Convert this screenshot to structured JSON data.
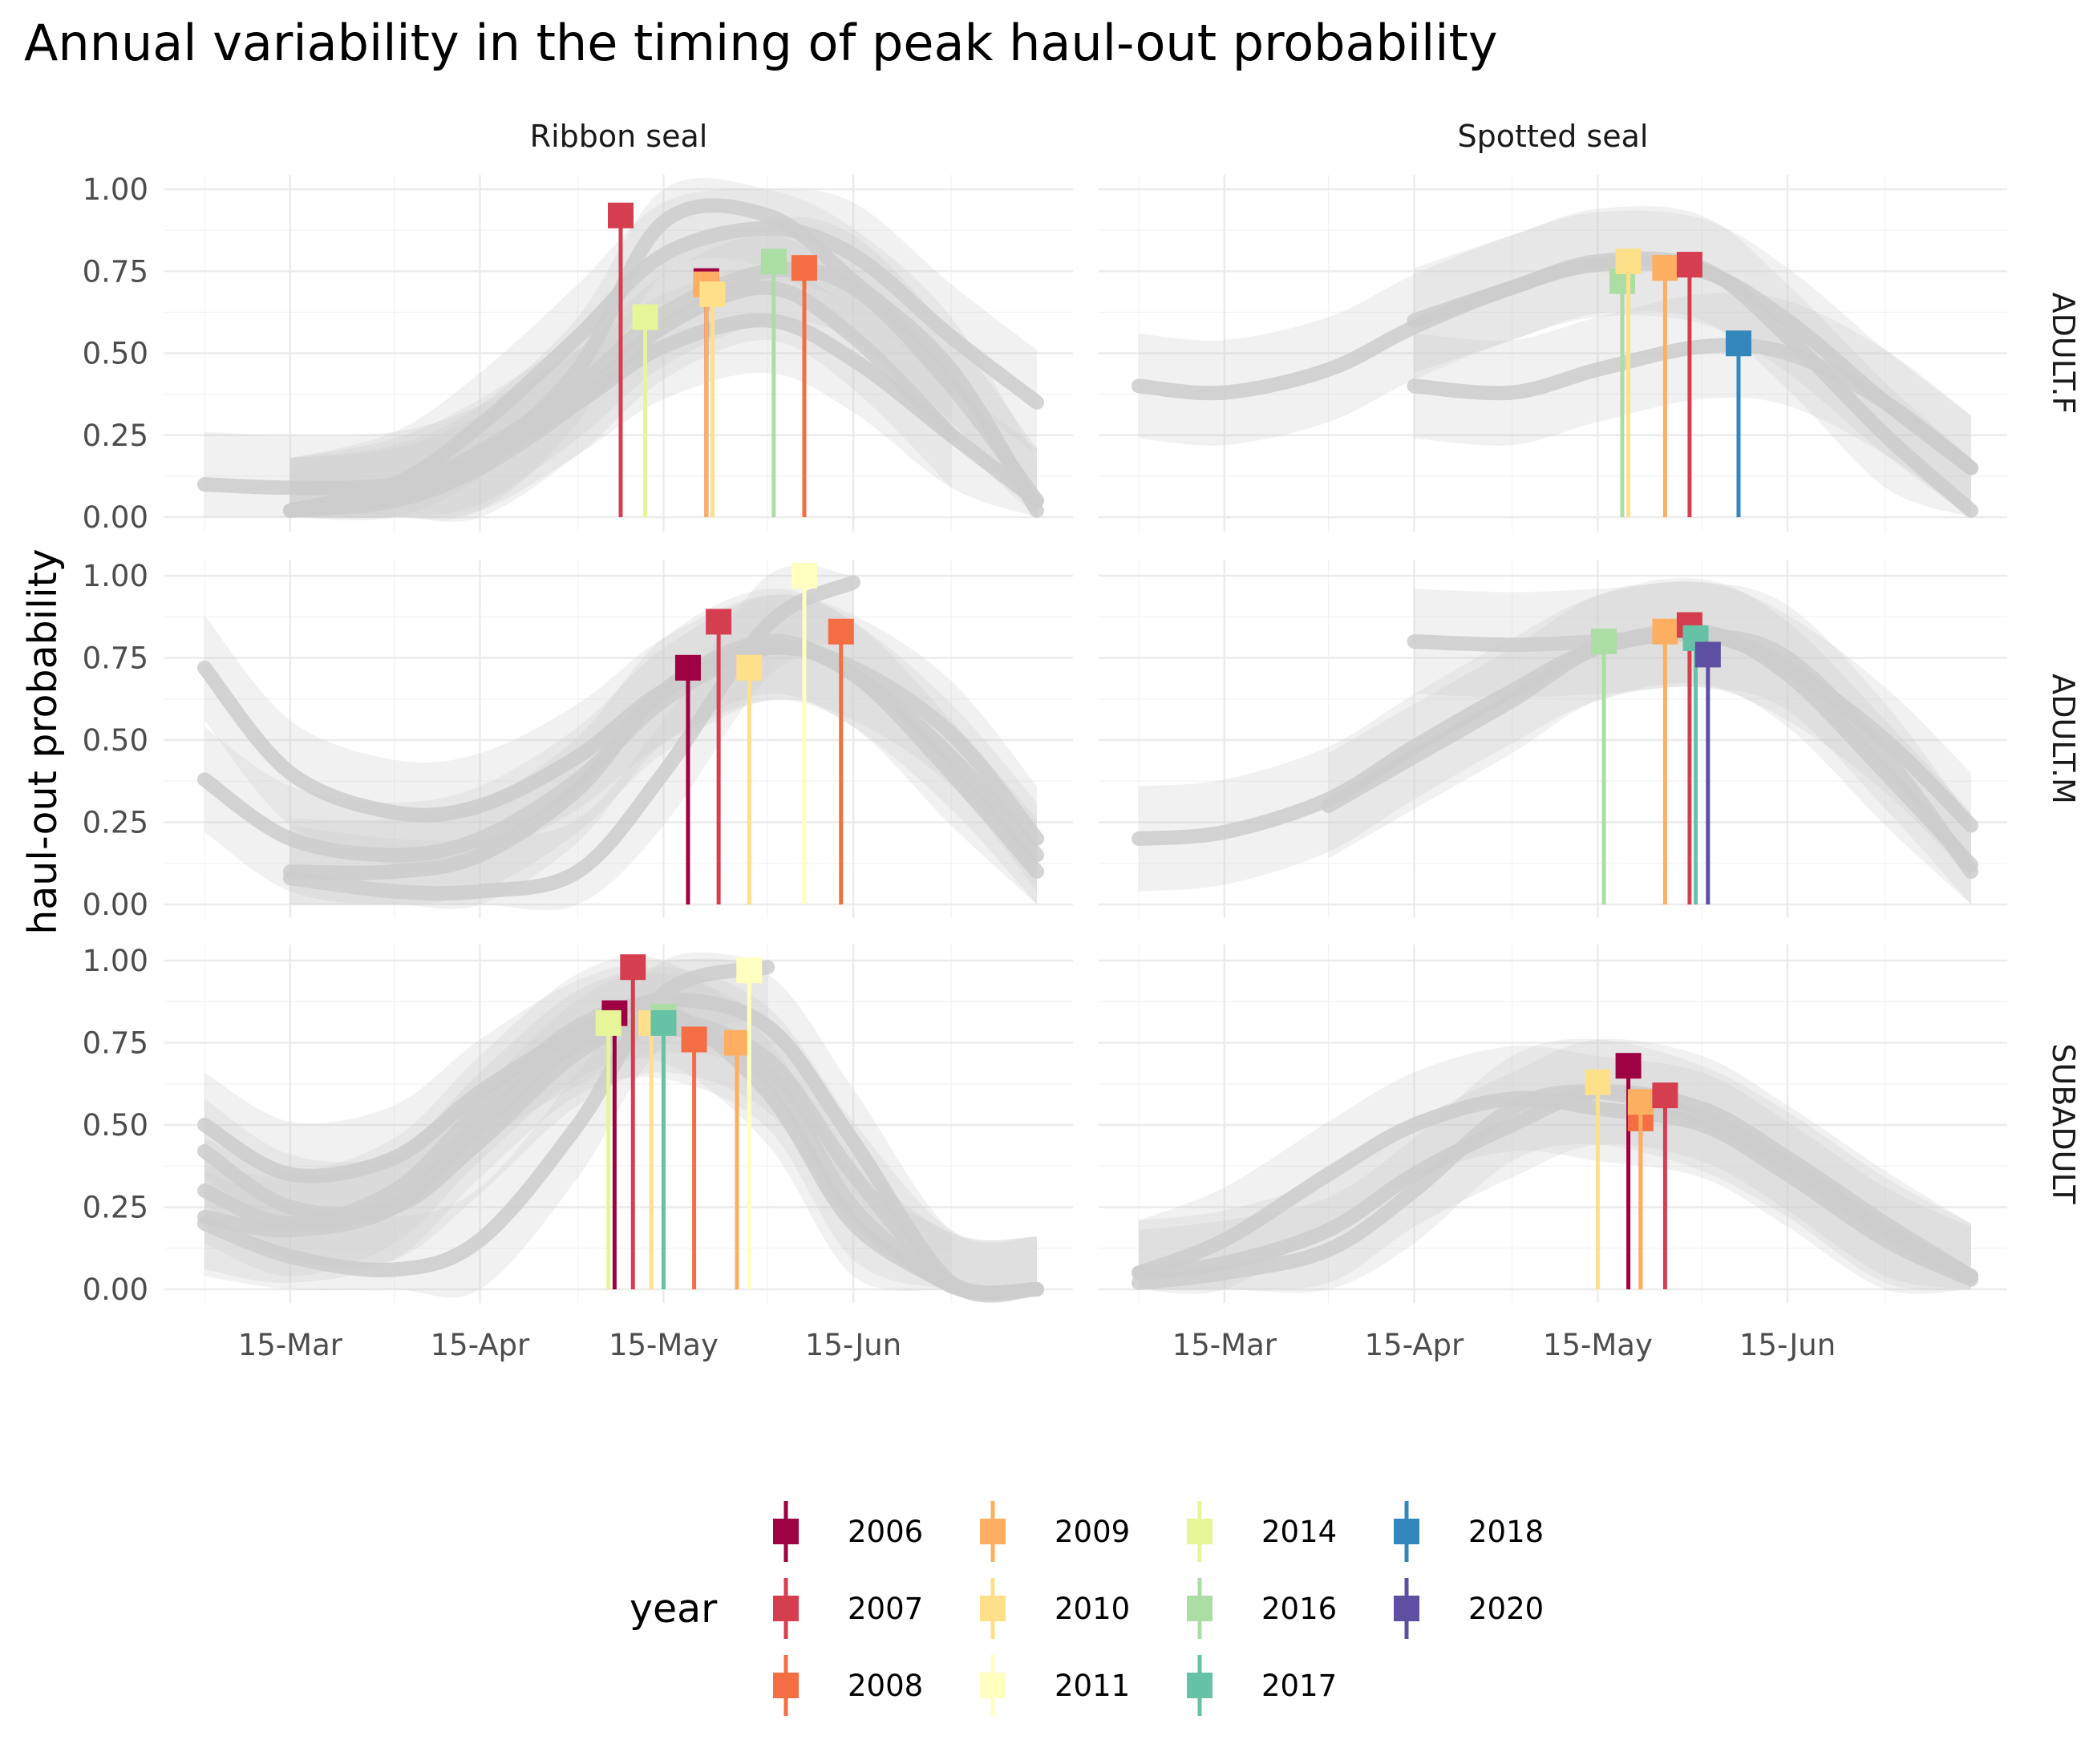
{
  "chart_data": {
    "type": "line",
    "title": "Annual variability in the timing of peak haul-out probability",
    "xlabel": "",
    "ylabel": "haul-out probability",
    "x_ticks": [
      "15-Mar",
      "15-Apr",
      "15-May",
      "15-Jun"
    ],
    "y_ticks": [
      "0.00",
      "0.25",
      "0.50",
      "0.75",
      "1.00"
    ],
    "ylim": [
      0,
      1
    ],
    "xlim": [
      "01-Mar",
      "15-Jul"
    ],
    "legend": {
      "title": "year",
      "position": "bottom",
      "entries": [
        {
          "year": "2006",
          "color": "#9E0142"
        },
        {
          "year": "2007",
          "color": "#D53E4F"
        },
        {
          "year": "2008",
          "color": "#F46D43"
        },
        {
          "year": "2009",
          "color": "#FDAE61"
        },
        {
          "year": "2010",
          "color": "#FEE08B"
        },
        {
          "year": "2011",
          "color": "#FFFFBF"
        },
        {
          "year": "2014",
          "color": "#E6F598"
        },
        {
          "year": "2016",
          "color": "#ABDDA4"
        },
        {
          "year": "2017",
          "color": "#66C2A5"
        },
        {
          "year": "2018",
          "color": "#3288BD"
        },
        {
          "year": "2020",
          "color": "#5E4FA2"
        }
      ]
    },
    "facets": {
      "columns": [
        "Ribbon seal",
        "Spotted seal"
      ],
      "rows": [
        "ADULT.F",
        "ADULT.M",
        "SUBADULT"
      ]
    },
    "curve_color": "#cccccc",
    "peaks": {
      "Ribbon seal": {
        "ADULT.F": [
          {
            "year": "2007",
            "date": "08-May",
            "value": 0.92
          },
          {
            "year": "2014",
            "date": "12-May",
            "value": 0.61
          },
          {
            "year": "2006",
            "date": "22-May",
            "value": 0.72
          },
          {
            "year": "2009",
            "date": "22-May",
            "value": 0.71
          },
          {
            "year": "2010",
            "date": "23-May",
            "value": 0.68
          },
          {
            "year": "2016",
            "date": "02-Jun",
            "value": 0.78
          },
          {
            "year": "2008",
            "date": "07-Jun",
            "value": 0.76
          }
        ],
        "ADULT.M": [
          {
            "year": "2006",
            "date": "19-May",
            "value": 0.72
          },
          {
            "year": "2007",
            "date": "24-May",
            "value": 0.86
          },
          {
            "year": "2010",
            "date": "29-May",
            "value": 0.72
          },
          {
            "year": "2011",
            "date": "07-Jun",
            "value": 1.0
          },
          {
            "year": "2008",
            "date": "13-Jun",
            "value": 0.83
          }
        ],
        "SUBADULT": [
          {
            "year": "2006",
            "date": "07-May",
            "value": 0.84
          },
          {
            "year": "2014",
            "date": "06-May",
            "value": 0.81
          },
          {
            "year": "2007",
            "date": "10-May",
            "value": 0.98
          },
          {
            "year": "2010",
            "date": "13-May",
            "value": 0.81
          },
          {
            "year": "2016",
            "date": "15-May",
            "value": 0.83
          },
          {
            "year": "2017",
            "date": "15-May",
            "value": 0.81
          },
          {
            "year": "2008",
            "date": "20-May",
            "value": 0.76
          },
          {
            "year": "2009",
            "date": "27-May",
            "value": 0.75
          },
          {
            "year": "2011",
            "date": "29-May",
            "value": 0.97
          }
        ]
      },
      "Spotted seal": {
        "ADULT.F": [
          {
            "year": "2016",
            "date": "19-May",
            "value": 0.72
          },
          {
            "year": "2010",
            "date": "20-May",
            "value": 0.78
          },
          {
            "year": "2009",
            "date": "26-May",
            "value": 0.76
          },
          {
            "year": "2007",
            "date": "30-May",
            "value": 0.77
          },
          {
            "year": "2018",
            "date": "07-Jun",
            "value": 0.53
          }
        ],
        "ADULT.M": [
          {
            "year": "2016",
            "date": "16-May",
            "value": 0.8
          },
          {
            "year": "2009",
            "date": "26-May",
            "value": 0.83
          },
          {
            "year": "2007",
            "date": "30-May",
            "value": 0.85
          },
          {
            "year": "2017",
            "date": "31-May",
            "value": 0.81
          },
          {
            "year": "2020",
            "date": "02-Jun",
            "value": 0.76
          }
        ],
        "SUBADULT": [
          {
            "year": "2010",
            "date": "15-May",
            "value": 0.63
          },
          {
            "year": "2006",
            "date": "20-May",
            "value": 0.68
          },
          {
            "year": "2008",
            "date": "22-May",
            "value": 0.52
          },
          {
            "year": "2009",
            "date": "22-May",
            "value": 0.57
          },
          {
            "year": "2007",
            "date": "26-May",
            "value": 0.59
          }
        ]
      }
    },
    "curves": {
      "Ribbon seal": {
        "ADULT.F": [
          {
            "x": [
              "01-Mar",
              "15-Mar",
              "01-Apr",
              "15-Apr",
              "01-May",
              "15-May",
              "01-Jun",
              "15-Jun",
              "01-Jul",
              "15-Jul"
            ],
            "y": [
              0.1,
              0.09,
              0.1,
              0.18,
              0.35,
              0.52,
              0.6,
              0.48,
              0.25,
              0.05
            ]
          },
          {
            "x": [
              "15-Mar",
              "01-Apr",
              "15-Apr",
              "01-May",
              "15-May",
              "01-Jun",
              "15-Jun",
              "01-Jul",
              "15-Jul"
            ],
            "y": [
              0.02,
              0.08,
              0.2,
              0.4,
              0.62,
              0.75,
              0.7,
              0.4,
              0.05
            ]
          },
          {
            "x": [
              "15-Mar",
              "01-Apr",
              "15-Apr",
              "01-May",
              "15-May",
              "01-Jun",
              "15-Jun",
              "01-Jul",
              "15-Jul"
            ],
            "y": [
              0.02,
              0.1,
              0.28,
              0.55,
              0.8,
              0.88,
              0.8,
              0.55,
              0.35
            ]
          },
          {
            "x": [
              "15-Mar",
              "01-Apr",
              "15-Apr",
              "01-May",
              "15-May",
              "01-Jun",
              "15-Jun",
              "01-Jul",
              "15-Jul"
            ],
            "y": [
              0.02,
              0.06,
              0.18,
              0.45,
              0.9,
              0.92,
              0.72,
              0.45,
              0.02
            ]
          },
          {
            "x": [
              "15-Mar",
              "01-Apr",
              "15-Apr",
              "01-May",
              "15-May",
              "01-Jun",
              "15-Jun",
              "01-Jul"
            ],
            "y": [
              0.02,
              0.05,
              0.15,
              0.35,
              0.58,
              0.7,
              0.55,
              0.25
            ]
          }
        ],
        "ADULT.M": [
          {
            "x": [
              "01-Mar",
              "15-Mar",
              "01-Apr",
              "15-Apr",
              "01-May",
              "15-May",
              "01-Jun",
              "15-Jun",
              "01-Jul",
              "15-Jul"
            ],
            "y": [
              0.72,
              0.4,
              0.28,
              0.3,
              0.45,
              0.65,
              0.78,
              0.7,
              0.4,
              0.1
            ]
          },
          {
            "x": [
              "01-Mar",
              "15-Mar",
              "01-Apr",
              "15-Apr",
              "01-May",
              "15-May",
              "01-Jun",
              "15-Jun",
              "01-Jul",
              "15-Jul"
            ],
            "y": [
              0.38,
              0.2,
              0.15,
              0.2,
              0.38,
              0.62,
              0.78,
              0.72,
              0.52,
              0.2
            ]
          },
          {
            "x": [
              "15-Mar",
              "01-Apr",
              "15-Apr",
              "01-May",
              "15-May",
              "01-Jun",
              "15-Jun"
            ],
            "y": [
              0.08,
              0.04,
              0.04,
              0.1,
              0.4,
              0.85,
              0.98
            ]
          },
          {
            "x": [
              "15-Mar",
              "01-Apr",
              "15-Apr",
              "01-May",
              "15-May",
              "01-Jun",
              "15-Jun",
              "01-Jul",
              "15-Jul"
            ],
            "y": [
              0.1,
              0.1,
              0.15,
              0.35,
              0.65,
              0.8,
              0.7,
              0.45,
              0.15
            ]
          }
        ],
        "SUBADULT": [
          {
            "x": [
              "01-Mar",
              "15-Mar",
              "01-Apr",
              "15-Apr",
              "01-May",
              "15-May",
              "01-Jun",
              "15-Jun",
              "01-Jul",
              "15-Jul"
            ],
            "y": [
              0.5,
              0.35,
              0.4,
              0.6,
              0.78,
              0.88,
              0.8,
              0.45,
              0.02,
              0.0
            ]
          },
          {
            "x": [
              "01-Mar",
              "15-Mar",
              "01-Apr",
              "15-Apr",
              "01-May",
              "15-May",
              "01-Jun",
              "15-Jun",
              "01-Jul",
              "15-Jul"
            ],
            "y": [
              0.42,
              0.25,
              0.25,
              0.45,
              0.72,
              0.82,
              0.7,
              0.35,
              0.02,
              0.0
            ]
          },
          {
            "x": [
              "01-Mar",
              "15-Mar",
              "01-Apr",
              "15-Apr",
              "01-May",
              "15-May",
              "01-Jun",
              "15-Jun",
              "01-Jul",
              "15-Jul"
            ],
            "y": [
              0.22,
              0.18,
              0.25,
              0.5,
              0.75,
              0.8,
              0.65,
              0.25,
              0.01,
              0.0
            ]
          },
          {
            "x": [
              "01-Mar",
              "15-Mar",
              "01-Apr",
              "15-Apr",
              "01-May",
              "15-May",
              "01-Jun"
            ],
            "y": [
              0.2,
              0.1,
              0.06,
              0.15,
              0.5,
              0.9,
              0.98
            ]
          },
          {
            "x": [
              "01-Mar",
              "15-Mar",
              "01-Apr",
              "15-Apr",
              "01-May",
              "15-May",
              "01-Jun",
              "15-Jun",
              "01-Jul"
            ],
            "y": [
              0.3,
              0.2,
              0.3,
              0.55,
              0.8,
              0.85,
              0.6,
              0.2,
              0.01
            ]
          }
        ]
      },
      "Spotted seal": {
        "ADULT.F": [
          {
            "x": [
              "01-Mar",
              "15-Mar",
              "01-Apr",
              "15-Apr",
              "01-May",
              "15-May",
              "01-Jun",
              "15-Jun",
              "01-Jul",
              "15-Jul"
            ],
            "y": [
              0.4,
              0.38,
              0.45,
              0.58,
              0.7,
              0.77,
              0.75,
              0.6,
              0.35,
              0.15
            ]
          },
          {
            "x": [
              "15-Apr",
              "01-May",
              "15-May",
              "01-Jun",
              "15-Jun",
              "01-Jul",
              "15-Jul"
            ],
            "y": [
              0.4,
              0.38,
              0.45,
              0.52,
              0.5,
              0.35,
              0.15
            ]
          },
          {
            "x": [
              "15-Apr",
              "01-May",
              "15-May",
              "01-Jun",
              "15-Jun",
              "01-Jul",
              "15-Jul"
            ],
            "y": [
              0.6,
              0.7,
              0.78,
              0.76,
              0.55,
              0.25,
              0.02
            ]
          }
        ],
        "ADULT.M": [
          {
            "x": [
              "01-Mar",
              "15-Mar",
              "01-Apr",
              "15-Apr",
              "01-May",
              "15-May",
              "01-Jun",
              "15-Jun",
              "01-Jul",
              "15-Jul"
            ],
            "y": [
              0.2,
              0.22,
              0.32,
              0.48,
              0.65,
              0.78,
              0.82,
              0.72,
              0.5,
              0.24
            ]
          },
          {
            "x": [
              "15-Apr",
              "01-May",
              "15-May",
              "01-Jun",
              "15-Jun",
              "01-Jul",
              "15-Jul"
            ],
            "y": [
              0.8,
              0.79,
              0.8,
              0.82,
              0.75,
              0.45,
              0.1
            ]
          },
          {
            "x": [
              "01-Apr",
              "15-Apr",
              "01-May",
              "15-May",
              "01-Jun",
              "15-Jun",
              "01-Jul",
              "15-Jul"
            ],
            "y": [
              0.3,
              0.45,
              0.62,
              0.78,
              0.83,
              0.7,
              0.4,
              0.12
            ]
          }
        ],
        "SUBADULT": [
          {
            "x": [
              "01-Mar",
              "15-Mar",
              "01-Apr",
              "15-Apr",
              "01-May",
              "15-May",
              "01-Jun",
              "15-Jun",
              "01-Jul",
              "15-Jul"
            ],
            "y": [
              0.05,
              0.08,
              0.18,
              0.35,
              0.5,
              0.6,
              0.55,
              0.4,
              0.2,
              0.04
            ]
          },
          {
            "x": [
              "01-Mar",
              "15-Mar",
              "01-Apr",
              "15-Apr",
              "01-May",
              "15-May",
              "01-Jun",
              "15-Jun",
              "01-Jul",
              "15-Jul"
            ],
            "y": [
              0.02,
              0.05,
              0.12,
              0.3,
              0.55,
              0.6,
              0.52,
              0.38,
              0.18,
              0.04
            ]
          },
          {
            "x": [
              "01-Mar",
              "15-Mar",
              "01-Apr",
              "15-Apr",
              "01-May",
              "15-May",
              "01-Jun",
              "15-Jun",
              "01-Jul",
              "15-Jul"
            ],
            "y": [
              0.05,
              0.15,
              0.35,
              0.5,
              0.58,
              0.55,
              0.5,
              0.35,
              0.15,
              0.03
            ]
          }
        ]
      }
    }
  }
}
